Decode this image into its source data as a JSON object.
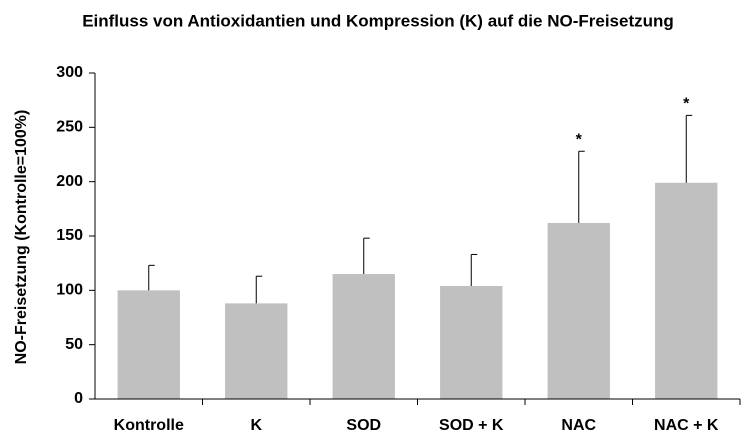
{
  "chart_data": {
    "type": "bar",
    "title": "Einfluss von Antioxidantien und Kompression (K) auf die NO-Freisetzung",
    "y_label": "NO-Freisetzung (Kontrolle=100%)",
    "categories": [
      "Kontrolle",
      "K",
      "SOD",
      "SOD + K",
      "NAC",
      "NAC + K"
    ],
    "values": [
      100,
      88,
      115,
      104,
      162,
      199
    ],
    "errors": [
      23,
      25,
      33,
      29,
      66,
      62
    ],
    "significance": [
      null,
      null,
      null,
      null,
      "*",
      "*"
    ],
    "color": "#c0c0c0",
    "ylim": [
      0,
      300
    ],
    "yticks": [
      0,
      50,
      100,
      150,
      200,
      250,
      300
    ],
    "grid": false
  }
}
